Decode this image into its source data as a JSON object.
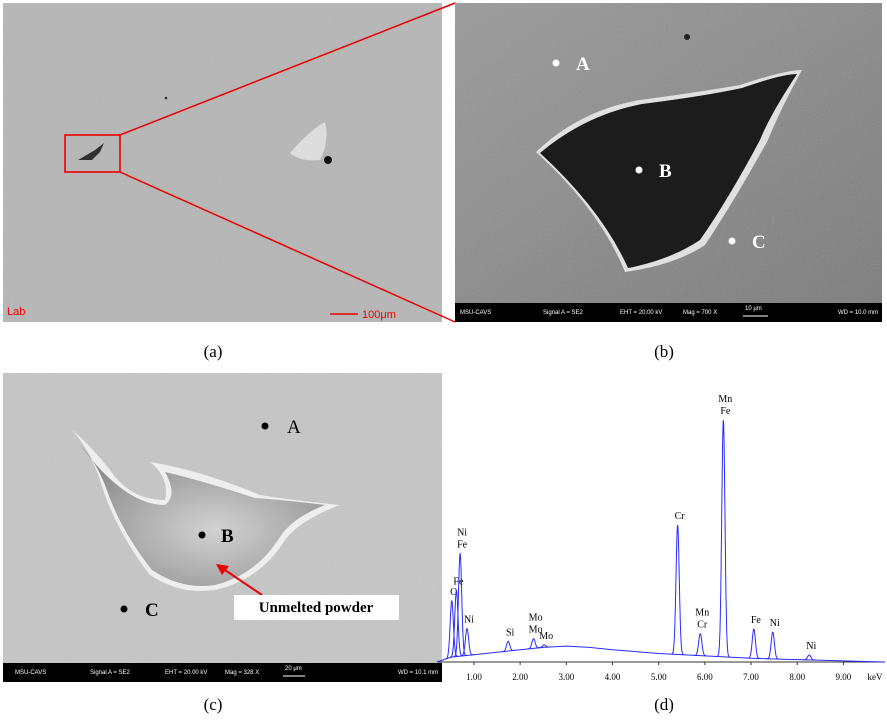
{
  "panels": {
    "a": {
      "caption": "(a)",
      "corner_label": "Lab",
      "scale_bar": "100μm"
    },
    "b": {
      "caption": "(b)",
      "points": [
        "A",
        "B",
        "C"
      ],
      "info": [
        "MSU-CAVS",
        "Signal A = SE2",
        "EHT = 20.00 kV",
        "Mag =  700 X",
        "10 μm",
        "WD = 10.0 mm"
      ]
    },
    "c": {
      "caption": "(c)",
      "points": [
        "A",
        "B",
        "C"
      ],
      "annotation": "Unmelted powder",
      "info": [
        "MSU-CAVS",
        "Signal A = SE2",
        "EHT = 20.00 kV",
        "Mag =  328 X",
        "20 μm",
        "WD = 10.1 mm"
      ]
    },
    "d": {
      "caption": "(d)",
      "x_unit": "keV",
      "xlim": [
        0.2,
        9.9
      ],
      "ylim": [
        0,
        100
      ],
      "xticks": [
        {
          "value": 1,
          "label": "1.00"
        },
        {
          "value": 2,
          "label": "2.00"
        },
        {
          "value": 3,
          "label": "3.00"
        },
        {
          "value": 4,
          "label": "4.00"
        },
        {
          "value": 5,
          "label": "5.00"
        },
        {
          "value": 6,
          "label": "6.00"
        },
        {
          "value": 7,
          "label": "7.00"
        },
        {
          "value": 8,
          "label": "8.00"
        },
        {
          "value": 9,
          "label": "9.00"
        }
      ],
      "background": {
        "x": [
          0.2,
          0.5,
          1.0,
          1.5,
          2.0,
          2.5,
          3.0,
          3.5,
          4.0,
          5.0,
          6.0,
          7.0,
          8.0,
          9.9
        ],
        "y": [
          0,
          2,
          3,
          4,
          5,
          6,
          6.5,
          6,
          5,
          3.5,
          2.5,
          1.5,
          1,
          0
        ]
      },
      "peak_width": 0.035,
      "peaks": [
        {
          "x": 0.52,
          "height": 23,
          "labels": [
            "O"
          ]
        },
        {
          "x": 0.62,
          "height": 27,
          "labels": [
            "Fe"
          ]
        },
        {
          "x": 0.7,
          "height": 42,
          "labels": [
            "Ni",
            "Fe"
          ]
        },
        {
          "x": 0.85,
          "height": 11,
          "labels": [
            "Ni"
          ]
        },
        {
          "x": 1.74,
          "height": 4,
          "labels": [
            "Si"
          ]
        },
        {
          "x": 2.29,
          "height": 4,
          "labels": [
            "Mo",
            "Mo"
          ]
        },
        {
          "x": 2.52,
          "height": 1,
          "labels": [
            "Mo"
          ]
        },
        {
          "x": 5.41,
          "height": 53,
          "labels": [
            "Cr"
          ]
        },
        {
          "x": 5.9,
          "height": 9,
          "labels": [
            "Mn",
            "Cr"
          ]
        },
        {
          "x": 6.4,
          "height": 97,
          "labels": [
            "Mn",
            "Fe"
          ]
        },
        {
          "x": 7.06,
          "height": 12,
          "labels": [
            "Fe"
          ]
        },
        {
          "x": 7.47,
          "height": 11,
          "labels": [
            "Ni"
          ]
        },
        {
          "x": 8.26,
          "height": 2,
          "labels": [
            "Ni"
          ]
        }
      ]
    }
  }
}
